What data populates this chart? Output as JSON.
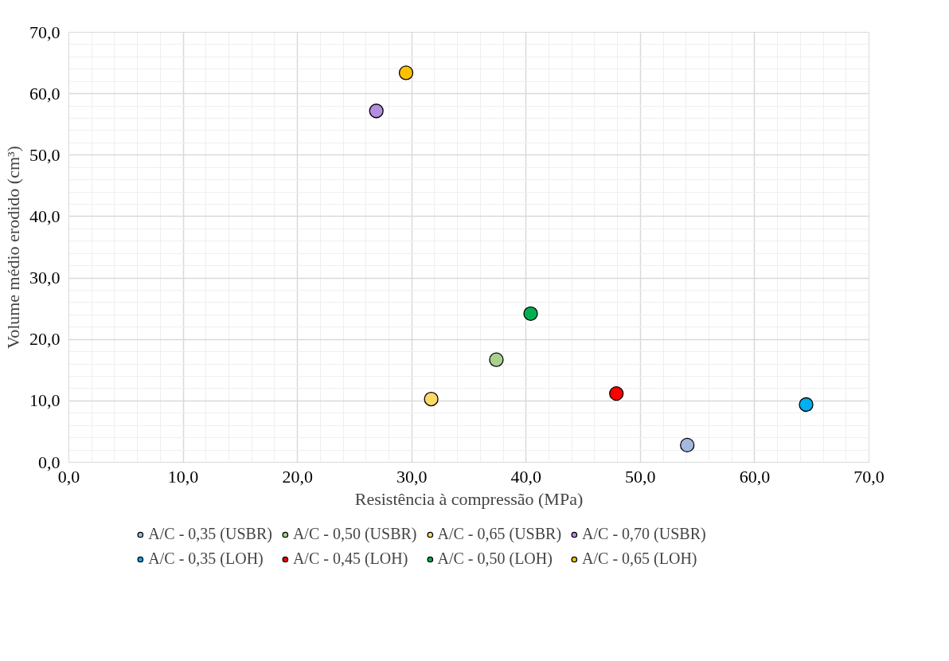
{
  "chart_data": {
    "type": "scatter",
    "xlabel": "Resistência à compressão (MPa)",
    "ylabel": "Volume médio erodido (cm³)",
    "xlim": [
      0,
      70
    ],
    "ylim": [
      0,
      70
    ],
    "xticks": [
      {
        "value": 0,
        "label": "0,0"
      },
      {
        "value": 10,
        "label": "10,0"
      },
      {
        "value": 20,
        "label": "20,0"
      },
      {
        "value": 30,
        "label": "30,0"
      },
      {
        "value": 40,
        "label": "40,0"
      },
      {
        "value": 50,
        "label": "50,0"
      },
      {
        "value": 60,
        "label": "60,0"
      },
      {
        "value": 70,
        "label": "70,0"
      }
    ],
    "yticks": [
      {
        "value": 0,
        "label": "0,0"
      },
      {
        "value": 10,
        "label": "10,0"
      },
      {
        "value": 20,
        "label": "20,0"
      },
      {
        "value": 30,
        "label": "30,0"
      },
      {
        "value": 40,
        "label": "40,0"
      },
      {
        "value": 50,
        "label": "50,0"
      },
      {
        "value": 60,
        "label": "60,0"
      },
      {
        "value": 70,
        "label": "70,0"
      }
    ],
    "grid": true,
    "legend": "bottom",
    "marker": "circle",
    "series": [
      {
        "name": "A/C - 0,35 (USBR)",
        "color": "#a4b8e0",
        "x": [
          54.1
        ],
        "values": [
          2.8
        ]
      },
      {
        "name": "A/C - 0,50 (USBR)",
        "color": "#a9d18e",
        "x": [
          37.4
        ],
        "values": [
          16.7
        ]
      },
      {
        "name": "A/C - 0,65 (USBR)",
        "color": "#ffd966",
        "x": [
          31.7
        ],
        "values": [
          10.3
        ]
      },
      {
        "name": "A/C - 0,70 (USBR)",
        "color": "#b38ee0",
        "x": [
          26.9
        ],
        "values": [
          57.2
        ]
      },
      {
        "name": "A/C - 0,35 (LOH)",
        "color": "#00b0f0",
        "x": [
          64.5
        ],
        "values": [
          9.4
        ]
      },
      {
        "name": "A/C - 0,45 (LOH)",
        "color": "#ff0000",
        "x": [
          47.9
        ],
        "values": [
          11.2
        ]
      },
      {
        "name": "A/C - 0,50 (LOH)",
        "color": "#00b050",
        "x": [
          40.4
        ],
        "values": [
          24.2
        ]
      },
      {
        "name": "A/C - 0,65 (LOH)",
        "color": "#ffc000",
        "x": [
          29.5
        ],
        "values": [
          63.4
        ]
      }
    ]
  }
}
